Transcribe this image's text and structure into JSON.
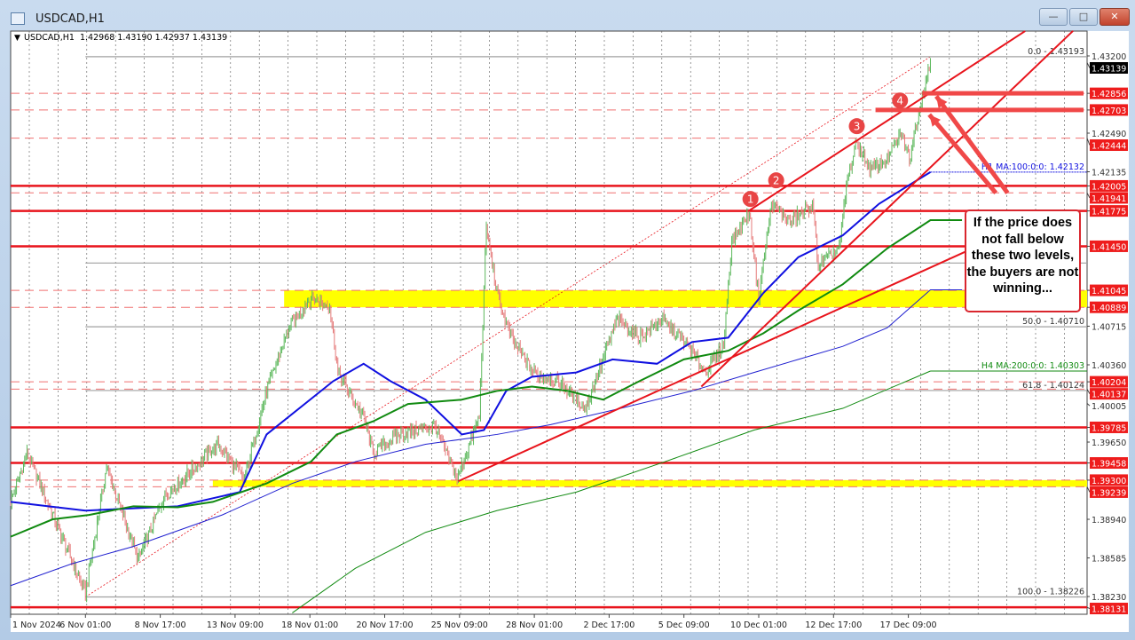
{
  "window": {
    "title": "USDCAD,H1",
    "buttons": {
      "minimize": "—",
      "maximize": "□",
      "close": "✕"
    },
    "accent": "#c2432c"
  },
  "chart_data": {
    "type": "candlestick",
    "title": "USDCAD,H1",
    "ohlc_header": "USDCAD,H1  1.42968 1.43190 1.42937 1.43139",
    "ohlc": {
      "open": 1.42968,
      "high": 1.4319,
      "low": 1.42937,
      "close": 1.43139
    },
    "timeframe": "H1",
    "ylim": [
      1.381,
      1.434
    ],
    "x_tick_labels": [
      "1 Nov 2024",
      "6 Nov 01:00",
      "8 Nov 17:00",
      "13 Nov 09:00",
      "18 Nov 01:00",
      "20 Nov 17:00",
      "25 Nov 09:00",
      "28 Nov 01:00",
      "2 Dec 17:00",
      "5 Dec 09:00",
      "10 Dec 01:00",
      "12 Dec 17:00",
      "17 Dec 09:00"
    ],
    "y_tick_labels": [
      "1.43200",
      "1.42490",
      "1.42135",
      "1.40715",
      "1.40360",
      "1.40005",
      "1.39650",
      "1.38940",
      "1.38585",
      "1.38230"
    ],
    "current_price": "1.43139",
    "price_path": [
      [
        0,
        1.391
      ],
      [
        14,
        1.3955
      ],
      [
        36,
        1.3898
      ],
      [
        64,
        1.3826
      ],
      [
        82,
        1.3942
      ],
      [
        109,
        1.3857
      ],
      [
        131,
        1.3914
      ],
      [
        177,
        1.3963
      ],
      [
        200,
        1.3931
      ],
      [
        219,
        1.4012
      ],
      [
        238,
        1.407
      ],
      [
        257,
        1.4098
      ],
      [
        273,
        1.409
      ],
      [
        280,
        1.4029
      ],
      [
        302,
        1.3988
      ],
      [
        310,
        1.3955
      ],
      [
        333,
        1.3972
      ],
      [
        363,
        1.398
      ],
      [
        382,
        1.3931
      ],
      [
        401,
        1.3988
      ],
      [
        407,
        1.4163
      ],
      [
        416,
        1.4102
      ],
      [
        428,
        1.4061
      ],
      [
        447,
        1.4029
      ],
      [
        469,
        1.402
      ],
      [
        492,
        1.3996
      ],
      [
        519,
        1.4078
      ],
      [
        538,
        1.4061
      ],
      [
        557,
        1.4078
      ],
      [
        580,
        1.4053
      ],
      [
        594,
        1.4029
      ],
      [
        610,
        1.4053
      ],
      [
        617,
        1.4151
      ],
      [
        632,
        1.4176
      ],
      [
        640,
        1.4098
      ],
      [
        651,
        1.4184
      ],
      [
        667,
        1.4167
      ],
      [
        686,
        1.4184
      ],
      [
        691,
        1.4127
      ],
      [
        709,
        1.4143
      ],
      [
        716,
        1.4208
      ],
      [
        724,
        1.4241
      ],
      [
        735,
        1.4216
      ],
      [
        750,
        1.4225
      ],
      [
        762,
        1.4249
      ],
      [
        769,
        1.4225
      ],
      [
        781,
        1.429
      ],
      [
        787,
        1.4314
      ]
    ],
    "moving_averages": [
      {
        "name": "H1 MA:100:0:0: 1.42132",
        "color": "#1010e0",
        "bold": true,
        "extend_label": true,
        "points": [
          [
            0,
            1.391
          ],
          [
            64,
            1.3902
          ],
          [
            143,
            1.3906
          ],
          [
            196,
            1.3919
          ],
          [
            219,
            1.3972
          ],
          [
            276,
            1.4021
          ],
          [
            302,
            1.4037
          ],
          [
            325,
            1.4021
          ],
          [
            355,
            1.4004
          ],
          [
            386,
            1.3972
          ],
          [
            405,
            1.3976
          ],
          [
            424,
            1.4012
          ],
          [
            446,
            1.4025
          ],
          [
            484,
            1.4029
          ],
          [
            515,
            1.4041
          ],
          [
            553,
            1.4037
          ],
          [
            583,
            1.4057
          ],
          [
            614,
            1.4061
          ],
          [
            644,
            1.4102
          ],
          [
            674,
            1.4135
          ],
          [
            712,
            1.4155
          ],
          [
            743,
            1.4184
          ],
          [
            773,
            1.4204
          ],
          [
            787,
            1.42132
          ]
        ]
      },
      {
        "name": "",
        "color": "#108a10",
        "bold": true,
        "points": [
          [
            0,
            1.3878
          ],
          [
            36,
            1.3894
          ],
          [
            67,
            1.3898
          ],
          [
            105,
            1.3906
          ],
          [
            143,
            1.3905
          ],
          [
            173,
            1.391
          ],
          [
            219,
            1.3927
          ],
          [
            257,
            1.3947
          ],
          [
            279,
            1.3972
          ],
          [
            310,
            1.3984
          ],
          [
            340,
            1.4
          ],
          [
            386,
            1.4004
          ],
          [
            416,
            1.4012
          ],
          [
            446,
            1.4016
          ],
          [
            477,
            1.4012
          ],
          [
            507,
            1.4004
          ],
          [
            538,
            1.4021
          ],
          [
            576,
            1.4041
          ],
          [
            614,
            1.4049
          ],
          [
            644,
            1.4065
          ],
          [
            674,
            1.4086
          ],
          [
            712,
            1.411
          ],
          [
            750,
            1.4143
          ],
          [
            787,
            1.4169
          ],
          [
            814,
            1.4169
          ]
        ]
      },
      {
        "name": "",
        "color": "#2020d0",
        "bold": false,
        "points": [
          [
            0,
            1.3833
          ],
          [
            52,
            1.3853
          ],
          [
            105,
            1.3869
          ],
          [
            181,
            1.3898
          ],
          [
            241,
            1.3927
          ],
          [
            295,
            1.3947
          ],
          [
            355,
            1.3963
          ],
          [
            416,
            1.3972
          ],
          [
            462,
            1.3981
          ],
          [
            522,
            1.3996
          ],
          [
            583,
            1.4012
          ],
          [
            636,
            1.4029
          ],
          [
            674,
            1.4041
          ],
          [
            712,
            1.4053
          ],
          [
            750,
            1.407
          ],
          [
            787,
            1.4105
          ],
          [
            814,
            1.4105
          ]
        ]
      },
      {
        "name": "H4 MA:200:0:0: 1.40303",
        "color": "#108a10",
        "bold": false,
        "extend_label": true,
        "points": [
          [
            241,
            1.3808
          ],
          [
            295,
            1.3849
          ],
          [
            355,
            1.3882
          ],
          [
            416,
            1.3902
          ],
          [
            484,
            1.3919
          ],
          [
            560,
            1.3947
          ],
          [
            636,
            1.3976
          ],
          [
            712,
            1.3996
          ],
          [
            787,
            1.40303
          ]
        ]
      }
    ],
    "levels": [
      {
        "price": "1.42856",
        "style": "dashed"
      },
      {
        "price": "1.42703",
        "style": "dashed"
      },
      {
        "price": "1.42444",
        "style": "dashed"
      },
      {
        "price": "1.42005",
        "style": "solid"
      },
      {
        "price": "1.41941",
        "style": "dashed"
      },
      {
        "price": "1.41775",
        "style": "solid"
      },
      {
        "price": "1.41450",
        "style": "solid"
      },
      {
        "price": "1.41045",
        "style": "dashed"
      },
      {
        "price": "1.40889",
        "style": "dashed"
      },
      {
        "price": "1.40204",
        "style": "dashed"
      },
      {
        "price": "1.40137",
        "style": "dashed"
      },
      {
        "price": "1.39785",
        "style": "solid"
      },
      {
        "price": "1.39458",
        "style": "solid"
      },
      {
        "price": "1.39300",
        "style": "dashed"
      },
      {
        "price": "1.39239",
        "style": "dashed"
      },
      {
        "price": "1.38131",
        "style": "solid"
      }
    ],
    "zones": [
      {
        "from": 1.40889,
        "to": 1.41045,
        "start": 234,
        "color": "#ffff00"
      },
      {
        "from": 1.39239,
        "to": 1.393,
        "start": 173,
        "color": "#ffff00"
      }
    ],
    "fibonacci": {
      "from": [
        64,
        1.38226
      ],
      "to": [
        787,
        1.43193
      ],
      "levels": [
        {
          "label": "0.0 - 1.43193",
          "price": 1.43193
        },
        {
          "label": "",
          "price": 1.41296
        },
        {
          "label": "50.0 - 1.40710",
          "price": 1.4071
        },
        {
          "label": "61.8 - 1.40124",
          "price": 1.40124
        },
        {
          "label": "100.0 - 1.38226",
          "price": 1.38226
        }
      ]
    },
    "trendlines": [
      [
        [
          631,
          1.41772
        ],
        [
          868,
          1.43428
        ]
      ],
      [
        [
          591,
          1.4016
        ],
        [
          909,
          1.4343
        ]
      ],
      [
        [
          383,
          1.3929
        ],
        [
          819,
          1.4141
        ]
      ]
    ],
    "highlight_lines": [
      {
        "price": 1.42856,
        "start": 780
      },
      {
        "price": 1.42703,
        "start": 740
      }
    ],
    "arrows": [
      {
        "from": [
          853,
          1.4194
        ],
        "to": [
          792,
          1.4283
        ]
      },
      {
        "from": [
          843,
          1.4194
        ],
        "to": [
          786,
          1.4266
        ]
      }
    ],
    "markers": [
      {
        "label": "1",
        "at": [
          633,
          1.41885
        ]
      },
      {
        "label": "2",
        "at": [
          655,
          1.42056
        ]
      },
      {
        "label": "3",
        "at": [
          724,
          1.42554
        ]
      },
      {
        "label": "4",
        "at": [
          761,
          1.4279
        ]
      }
    ],
    "colors": {
      "up": "#5cb85c",
      "down": "#e57a7a",
      "level": "#e8141c",
      "zone": "#ffff00",
      "fib": "#a0a0a0"
    },
    "annotation": "If the price does not fall below these two levels, the buyers are not winning..."
  }
}
